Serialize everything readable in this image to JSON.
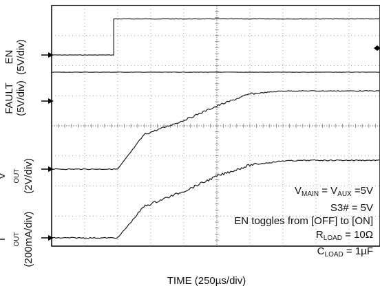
{
  "chart_data": {
    "type": "line",
    "title": "",
    "xlabel": "TIME (250µs/div)",
    "time_per_div_us": 250,
    "x_divisions": 10,
    "y_divisions": 8,
    "grid": true,
    "series": [
      {
        "name": "EN",
        "scale": "5V/div",
        "x_div": [
          0,
          1.88,
          1.88,
          10
        ],
        "y_div": [
          0,
          0,
          1.2,
          1.2
        ]
      },
      {
        "name": "FAULT",
        "scale": "5V/div",
        "x_div": [
          0,
          10
        ],
        "y_div": [
          0,
          0
        ]
      },
      {
        "name": "VOUT",
        "scale": "2V/div",
        "x_div": [
          0,
          2.0,
          2.8,
          4.0,
          5.0,
          6.0,
          7.0,
          8.0,
          9.0,
          10
        ],
        "y_div": [
          0,
          0,
          1.15,
          1.62,
          2.1,
          2.5,
          2.6,
          2.6,
          2.6,
          2.6
        ]
      },
      {
        "name": "IOUT",
        "scale": "200mA/div",
        "x_div": [
          0,
          2.0,
          2.8,
          4.0,
          5.0,
          6.0,
          7.0,
          8.0,
          9.0,
          10
        ],
        "y_div": [
          0,
          0,
          1.05,
          1.55,
          2.05,
          2.42,
          2.56,
          2.58,
          2.58,
          2.58
        ]
      }
    ],
    "channel_labels": [
      {
        "name": "EN",
        "scale": "(5V/div)"
      },
      {
        "name": "FAULT",
        "scale": "(5V/div)"
      },
      {
        "name": "V",
        "sub": "OUT",
        "scale": "(2V/div)"
      },
      {
        "name": "I",
        "sub": "OUT",
        "scale": "(200mA/div)"
      }
    ],
    "annotations": {
      "line1": {
        "a": "V",
        "a_sub": "MAIN",
        "mid": " = V",
        "b_sub": "AUX",
        "end": " =5V"
      },
      "line2": "S3# = 5V",
      "line3": "EN toggles from [OFF] to [ON]",
      "line4": {
        "a": "R",
        "a_sub": "LOAD",
        "end": " = 10Ω"
      },
      "line5": {
        "a": "C",
        "a_sub": "LOAD",
        "end": " = 1µF"
      }
    }
  },
  "colors": {
    "trace": "#1a1a1a",
    "grid": "#888888",
    "frame": "#000000"
  }
}
